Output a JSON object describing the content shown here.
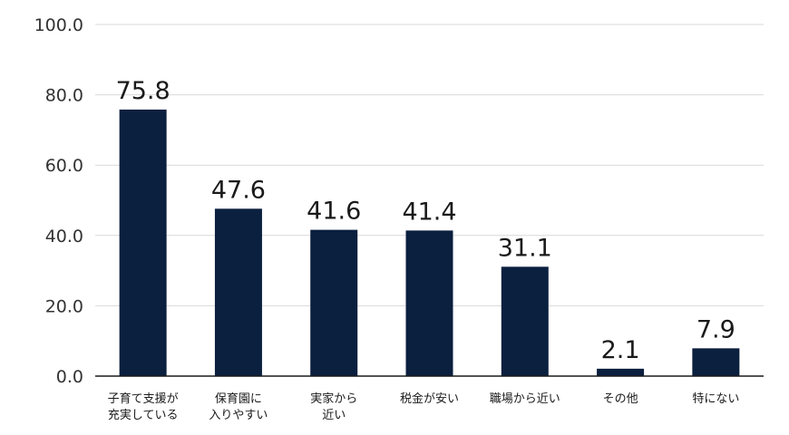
{
  "chart_data": {
    "type": "bar",
    "categories": [
      [
        "子育て支援が",
        "充実している"
      ],
      [
        "保育園に",
        "入りやすい"
      ],
      [
        "実家から",
        "近い"
      ],
      [
        "税金が安い"
      ],
      [
        "職場から近い"
      ],
      [
        "その他"
      ],
      [
        "特にない"
      ]
    ],
    "values": [
      75.8,
      47.6,
      41.6,
      41.4,
      31.1,
      2.1,
      7.9
    ],
    "data_labels": [
      "75.8",
      "47.6",
      "41.6",
      "41.4",
      "31.1",
      "2.1",
      "7.9"
    ],
    "y_ticks": [
      "0.0",
      "20.0",
      "40.0",
      "60.0",
      "80.0",
      "100.0"
    ],
    "ylim": [
      0,
      100
    ],
    "grid": true,
    "bar_color": "#0b1f3f",
    "title": "",
    "xlabel": "",
    "ylabel": ""
  }
}
